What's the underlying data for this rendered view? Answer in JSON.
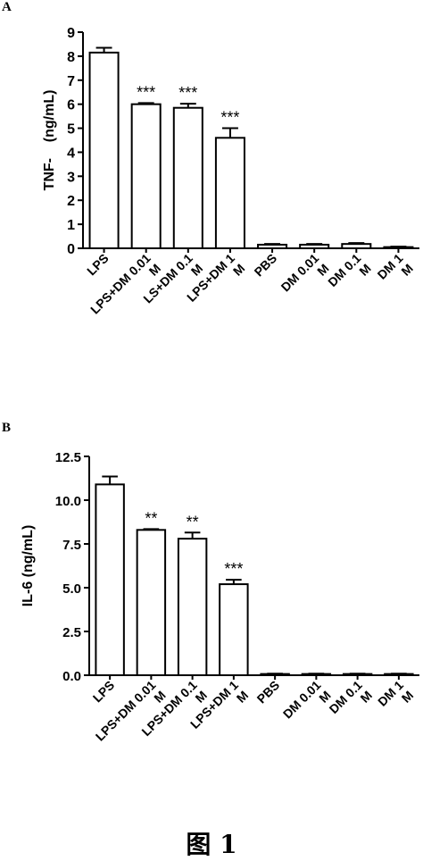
{
  "panels": [
    {
      "letter": "A"
    },
    {
      "letter": "B"
    }
  ],
  "caption": "图 1",
  "chart_data": [
    {
      "type": "bar",
      "ylabel": "TNF-    (ng/mL)",
      "ylim": [
        0,
        9
      ],
      "yticks": [
        0,
        1,
        2,
        3,
        4,
        5,
        6,
        7,
        8,
        9
      ],
      "categories": [
        "LPS",
        "LPS+DM 0.01 M",
        "LS+DM 0.1 M",
        "LPS+DM 1 M",
        "PBS",
        "DM 0.01 M",
        "DM 0.1 M",
        "DM 1 M"
      ],
      "tick_labels": [
        [
          "LPS"
        ],
        [
          "LPS+DM 0.01",
          "M"
        ],
        [
          "LS+DM 0.1",
          "M"
        ],
        [
          "LPS+DM 1",
          "M"
        ],
        [
          "PBS"
        ],
        [
          "DM 0.01",
          "M"
        ],
        [
          "DM 0.1",
          "M"
        ],
        [
          "DM 1",
          "M"
        ]
      ],
      "values": [
        8.15,
        6.0,
        5.85,
        4.6,
        0.15,
        0.15,
        0.18,
        0.05
      ],
      "errors": [
        0.2,
        0.05,
        0.17,
        0.4,
        0.03,
        0.03,
        0.04,
        0.02
      ],
      "annotations": [
        "",
        "***",
        "***",
        "***",
        "",
        "",
        "",
        ""
      ]
    },
    {
      "type": "bar",
      "ylabel": "IL-6 (ng/mL)",
      "ylim": [
        0,
        12.5
      ],
      "yticks": [
        "0.0",
        "2.5",
        "5.0",
        "7.5",
        "10.0",
        "12.5"
      ],
      "categories": [
        "LPS",
        "LPS+DM 0.01 M",
        "LPS+DM 0.1 M",
        "LPS+DM 1 M",
        "PBS",
        "DM 0.01 M",
        "DM 0.1 M",
        "DM 1 M"
      ],
      "tick_labels": [
        [
          "LPS"
        ],
        [
          "LPS+DM 0.01",
          "M"
        ],
        [
          "LPS+DM 0.1",
          "M"
        ],
        [
          "LPS+DM 1",
          "M"
        ],
        [
          "PBS"
        ],
        [
          "DM 0.01",
          "M"
        ],
        [
          "DM 0.1",
          "M"
        ],
        [
          "DM 1",
          "M"
        ]
      ],
      "values": [
        10.9,
        8.3,
        7.8,
        5.2,
        0.07,
        0.07,
        0.07,
        0.07
      ],
      "errors": [
        0.45,
        0.05,
        0.35,
        0.25,
        0.02,
        0.02,
        0.02,
        0.02
      ],
      "annotations": [
        "",
        "**",
        "**",
        "***",
        "",
        "",
        "",
        ""
      ]
    }
  ]
}
